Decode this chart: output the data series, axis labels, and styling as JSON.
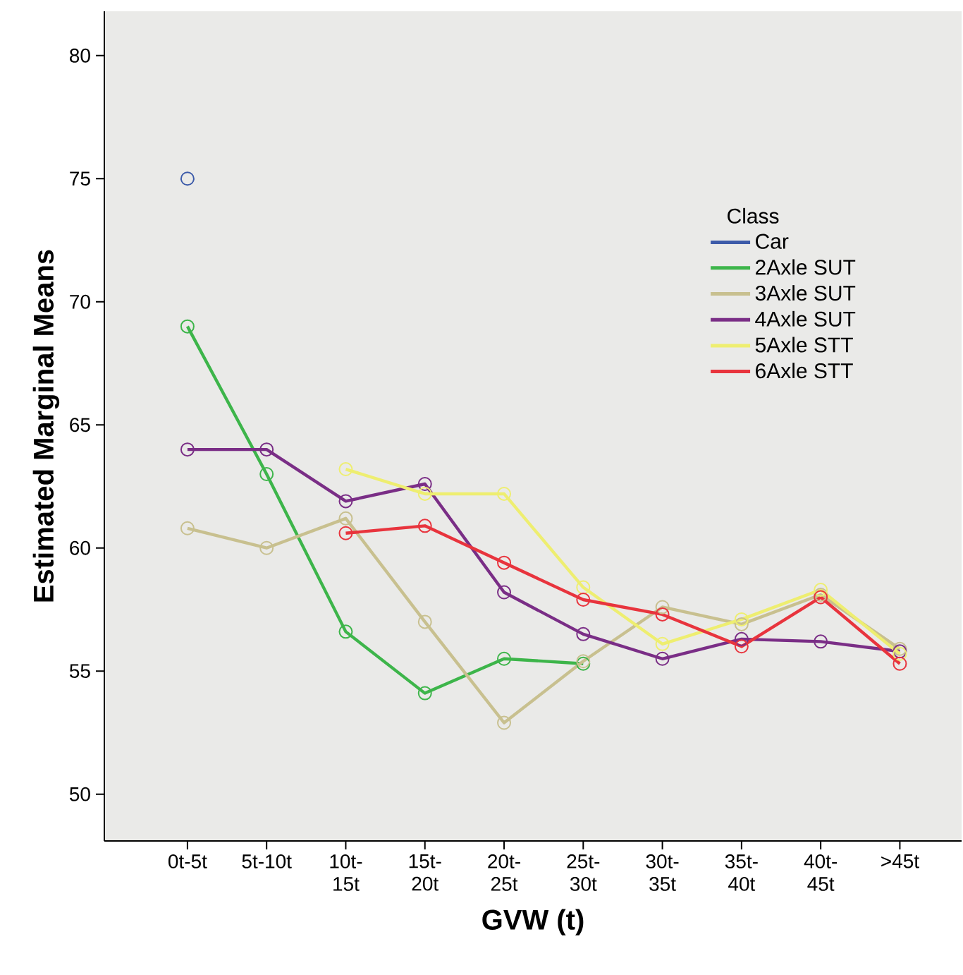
{
  "chart_data": {
    "type": "line",
    "xlabel": "GVW (t)",
    "ylabel": "Estimated Marginal Means",
    "legend_title": "Class",
    "legend": "right",
    "marker": "circle",
    "grid": false,
    "categories": [
      "0t-5t",
      "5t-10t",
      "10t-15t",
      "15t-20t",
      "20t-25t",
      "25t-30t",
      "30t-35t",
      "35t-40t",
      "40t-45t",
      ">45t"
    ],
    "ylim": [
      48.1,
      81.8
    ],
    "yticks": [
      50,
      55,
      60,
      65,
      70,
      75,
      80
    ],
    "series": [
      {
        "name": "Car",
        "color": "#3d5ba9",
        "values": [
          75.0,
          null,
          null,
          null,
          null,
          null,
          null,
          null,
          null,
          null
        ]
      },
      {
        "name": "2Axle SUT",
        "color": "#3db54a",
        "values": [
          69.0,
          63.0,
          56.6,
          54.1,
          55.5,
          55.3,
          null,
          null,
          null,
          null
        ]
      },
      {
        "name": "3Axle SUT",
        "color": "#c8c08f",
        "values": [
          60.8,
          60.0,
          61.2,
          57.0,
          52.9,
          55.4,
          57.6,
          56.9,
          58.1,
          55.9
        ]
      },
      {
        "name": "4Axle SUT",
        "color": "#7a2e86",
        "values": [
          64.0,
          64.0,
          61.9,
          62.6,
          58.2,
          56.5,
          55.5,
          56.3,
          56.2,
          55.8
        ]
      },
      {
        "name": "5Axle STT",
        "color": "#eeee70",
        "values": [
          null,
          null,
          63.2,
          62.2,
          62.2,
          58.4,
          56.1,
          57.1,
          58.3,
          55.7
        ]
      },
      {
        "name": "6Axle STT",
        "color": "#e8343d",
        "values": [
          null,
          null,
          60.6,
          60.9,
          59.4,
          57.9,
          57.3,
          56.0,
          58.0,
          55.3
        ]
      }
    ]
  }
}
